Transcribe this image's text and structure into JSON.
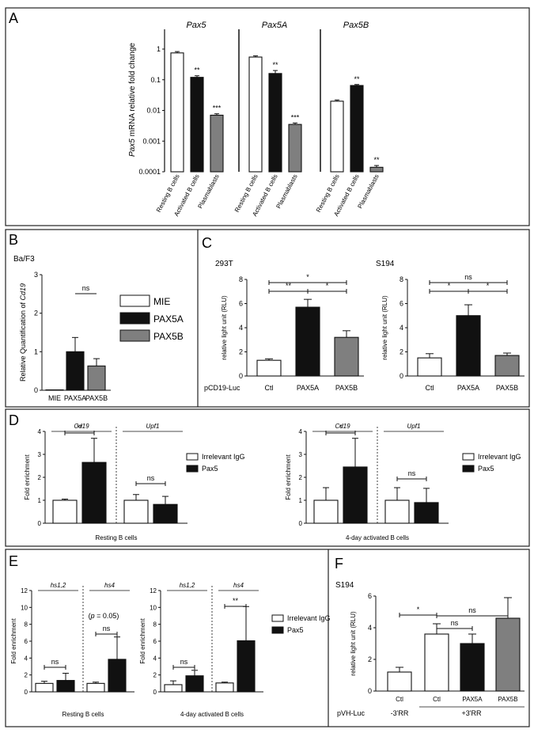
{
  "panels": {
    "A": "A",
    "B": "B",
    "C": "C",
    "D": "D",
    "E": "E",
    "F": "F"
  },
  "colors": {
    "white": "#ffffff",
    "black": "#111111",
    "gray": "#7f7f7f",
    "frame": "#222222"
  },
  "chart_data": [
    {
      "id": "A",
      "type": "bar",
      "ylabel_italic": "Pax5",
      "ylabel_rest": " mRNA  relative fold change",
      "scale": "log",
      "ylim": [
        0.0001,
        1
      ],
      "ticks": [
        "1",
        "0.1",
        "0.01",
        "0.001",
        "0.0001"
      ],
      "groups": [
        {
          "title": "Pax5",
          "categories": [
            "Resting B cells",
            "Activated B cells",
            "Plasmablasts"
          ],
          "values": [
            0.75,
            0.12,
            0.007
          ],
          "errors": [
            0.08,
            0.015,
            0.0008
          ],
          "sig": [
            "",
            "**",
            "***"
          ],
          "fills": [
            "white",
            "black",
            "gray"
          ]
        },
        {
          "title": "Pax5A",
          "categories": [
            "Resting B cells",
            "Activated B cells",
            "Plasmablasts"
          ],
          "values": [
            0.55,
            0.16,
            0.0035
          ],
          "errors": [
            0.05,
            0.04,
            0.0004
          ],
          "sig": [
            "",
            "**",
            "***"
          ],
          "fills": [
            "white",
            "black",
            "gray"
          ]
        },
        {
          "title": "Pax5B",
          "categories": [
            "Resting B cells",
            "Activated B cells",
            "Plasmablasts"
          ],
          "values": [
            0.02,
            0.065,
            0.00014
          ],
          "errors": [
            0.002,
            0.005,
            2e-05
          ],
          "sig": [
            "",
            "**",
            "**"
          ],
          "fills": [
            "white",
            "black",
            "gray"
          ]
        }
      ]
    },
    {
      "id": "B",
      "type": "bar",
      "subtitle": "Ba/F3",
      "ylabel_rest": "Relative Quantification of ",
      "ylabel_italic": "Cd19",
      "ylim": [
        0,
        3
      ],
      "ticks": [
        "0",
        "1",
        "2",
        "3"
      ],
      "categories": [
        "MIE",
        "PAX5A",
        "PAX5B"
      ],
      "values": [
        0.01,
        1.0,
        0.63
      ],
      "errors": [
        0,
        0.37,
        0.19
      ],
      "fills": [
        "white",
        "black",
        "gray"
      ],
      "legend": [
        "MIE",
        "PAX5A",
        "PAX5B"
      ],
      "comparisons": [
        {
          "label": "ns",
          "from": 1,
          "to": 2
        }
      ]
    },
    {
      "id": "C1",
      "type": "bar",
      "subtitle": "293T",
      "ylabel": "relative light unit (RLU)",
      "row_label": "pCD19-Luc",
      "ylim": [
        0,
        8
      ],
      "ticks": [
        "0",
        "2",
        "4",
        "6",
        "8"
      ],
      "categories": [
        "Ctl",
        "PAX5A",
        "PAX5B"
      ],
      "values": [
        1.3,
        5.7,
        3.2
      ],
      "errors": [
        0.12,
        0.65,
        0.55
      ],
      "fills": [
        "white",
        "black",
        "gray"
      ],
      "comparisons": [
        {
          "label": "*",
          "from": 0,
          "to": 2
        },
        {
          "label": "**",
          "from": 0,
          "to": 1
        },
        {
          "label": "*",
          "from": 1,
          "to": 2
        }
      ]
    },
    {
      "id": "C2",
      "type": "bar",
      "subtitle": "S194",
      "ylabel": "relative light unit (RLU)",
      "row_label": "pCD19-Luc",
      "ylim": [
        0,
        8
      ],
      "ticks": [
        "0",
        "2",
        "4",
        "6",
        "8"
      ],
      "categories": [
        "Ctl",
        "PAX5A",
        "PAX5B"
      ],
      "values": [
        1.5,
        5.0,
        1.7
      ],
      "errors": [
        0.35,
        0.9,
        0.2
      ],
      "fills": [
        "white",
        "black",
        "gray"
      ],
      "comparisons": [
        {
          "label": "ns",
          "from": 0,
          "to": 2
        },
        {
          "label": "*",
          "from": 0,
          "to": 1
        },
        {
          "label": "*",
          "from": 1,
          "to": 2
        }
      ]
    },
    {
      "id": "D1",
      "type": "bar",
      "ylabel": "Fold enrichment",
      "xlabel": "Resting B cells",
      "ylim": [
        0,
        4
      ],
      "ticks": [
        "0",
        "1",
        "2",
        "3",
        "4"
      ],
      "genes": [
        "Cd19",
        "Upf1"
      ],
      "series": [
        {
          "name": "Irrelevant IgG",
          "values": [
            1.0,
            1.0
          ],
          "errors": [
            0.05,
            0.25
          ]
        },
        {
          "name": "Pax5",
          "values": [
            2.65,
            0.82
          ],
          "errors": [
            1.05,
            0.35
          ]
        }
      ],
      "comparisons": [
        {
          "label": "**",
          "gene": 0
        },
        {
          "label": "ns",
          "gene": 1
        }
      ]
    },
    {
      "id": "D2",
      "type": "bar",
      "ylabel": "Fold enrichment",
      "xlabel": "4-day activated B cells",
      "ylim": [
        0,
        4
      ],
      "ticks": [
        "0",
        "1",
        "2",
        "3",
        "4"
      ],
      "genes": [
        "Cd19",
        "Upf1"
      ],
      "series": [
        {
          "name": "Irrelevant IgG",
          "values": [
            1.0,
            1.0
          ],
          "errors": [
            0.55,
            0.55
          ]
        },
        {
          "name": "Pax5",
          "values": [
            2.45,
            0.9
          ],
          "errors": [
            1.25,
            0.62
          ]
        }
      ],
      "comparisons": [
        {
          "label": "*",
          "gene": 0
        },
        {
          "label": "ns",
          "gene": 1
        }
      ]
    },
    {
      "id": "E1",
      "type": "bar",
      "ylabel": "Fold enrichment",
      "xlabel": "Resting B cells",
      "ylim": [
        0,
        12
      ],
      "ticks": [
        "0",
        "2",
        "4",
        "6",
        "8",
        "10",
        "12"
      ],
      "genes": [
        "hs1,2",
        "hs4"
      ],
      "series": [
        {
          "name": "Irrelevant IgG",
          "values": [
            1.0,
            1.0
          ],
          "errors": [
            0.25,
            0.15
          ]
        },
        {
          "name": "Pax5",
          "values": [
            1.35,
            3.85
          ],
          "errors": [
            0.85,
            2.65
          ]
        }
      ],
      "comparisons": [
        {
          "label": "ns",
          "gene": 0
        },
        {
          "label": "ns",
          "gene": 1
        }
      ],
      "note": {
        "pre": "(",
        "italic": "p",
        "post": " = 0.05)"
      }
    },
    {
      "id": "E2",
      "type": "bar",
      "ylabel": "Fold enrichment",
      "xlabel": "4-day activated B cells",
      "ylim": [
        0,
        12
      ],
      "ticks": [
        "0",
        "2",
        "4",
        "6",
        "8",
        "10",
        "12"
      ],
      "genes": [
        "hs1,2",
        "hs4"
      ],
      "series": [
        {
          "name": "Irrelevant IgG",
          "values": [
            0.85,
            1.05
          ],
          "errors": [
            0.45,
            0.1
          ]
        },
        {
          "name": "Pax5",
          "values": [
            1.9,
            6.05
          ],
          "errors": [
            0.65,
            4.05
          ]
        }
      ],
      "comparisons": [
        {
          "label": "ns",
          "gene": 0
        },
        {
          "label": "**",
          "gene": 1
        }
      ]
    },
    {
      "id": "F",
      "type": "bar",
      "subtitle": "S194",
      "ylabel": "relative light unit (RLU)",
      "row_label": "pVH-Luc",
      "ylim": [
        0,
        6
      ],
      "ticks": [
        "0",
        "2",
        "4",
        "6"
      ],
      "categories": [
        "Ctl",
        "Ctl",
        "PAX5A",
        "PAX5B"
      ],
      "values": [
        1.2,
        3.6,
        3.0,
        4.6
      ],
      "errors": [
        0.3,
        0.65,
        0.6,
        1.3
      ],
      "fills": [
        "white",
        "white",
        "black",
        "gray"
      ],
      "groups": [
        "-3'RR",
        "+3'RR"
      ],
      "comparisons": [
        {
          "label": "*",
          "from": 0,
          "to": 1
        },
        {
          "label": "ns",
          "from": 1,
          "to": 2
        },
        {
          "label": "ns",
          "from": 1,
          "to": 3
        }
      ]
    }
  ],
  "legend_DE": [
    "Irrelevant IgG",
    "Pax5"
  ]
}
